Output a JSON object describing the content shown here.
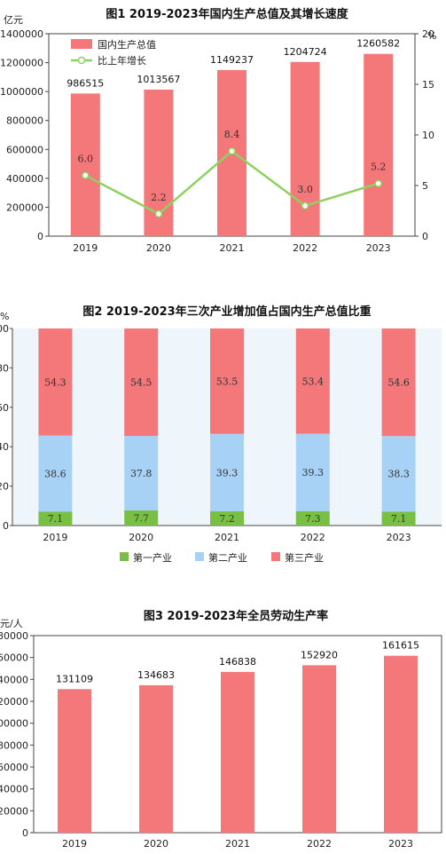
{
  "colors": {
    "bar": "#f4777a",
    "line": "#8fd160",
    "primary": "#78c044",
    "secondary": "#a8d2f5",
    "tertiary": "#f4777a",
    "plot_bg": "#eef6fc"
  },
  "chart_data": [
    {
      "type": "bar",
      "title": "图1  2019-2023年国内生产总值及其增长速度",
      "ylabel": "亿元",
      "y2label": "%",
      "categories": [
        "2019",
        "2020",
        "2021",
        "2022",
        "2023"
      ],
      "ylim": [
        0,
        1400000
      ],
      "yticks": [
        "0",
        "200000",
        "400000",
        "600000",
        "800000",
        "1000000",
        "1200000",
        "1400000"
      ],
      "y2lim": [
        0,
        20
      ],
      "y2ticks": [
        "0",
        "5",
        "10",
        "15",
        "20"
      ],
      "legend": "top-left",
      "series": [
        {
          "name": "国内生产总值",
          "type": "bar",
          "values": [
            986515,
            1013567,
            1149237,
            1204724,
            1260582
          ],
          "labels": [
            "986515",
            "1013567",
            "1149237",
            "1204724",
            "1260582"
          ]
        },
        {
          "name": "比上年增长",
          "type": "line",
          "axis": "right",
          "values": [
            6.0,
            2.2,
            8.4,
            3.0,
            5.2
          ],
          "labels": [
            "6.0",
            "2.2",
            "8.4",
            "3.0",
            "5.2"
          ]
        }
      ]
    },
    {
      "type": "bar",
      "stacked": true,
      "title": "图2  2019-2023年三次产业增加值占国内生产总值比重",
      "ylabel": "%",
      "categories": [
        "2019",
        "2020",
        "2021",
        "2022",
        "2023"
      ],
      "ylim": [
        0,
        100
      ],
      "yticks": [
        "0",
        "20",
        "40",
        "60",
        "80",
        "100"
      ],
      "legend": "bottom",
      "series": [
        {
          "name": "第一产业",
          "values": [
            7.1,
            7.7,
            7.2,
            7.3,
            7.1
          ],
          "labels": [
            "7.1",
            "7.7",
            "7.2",
            "7.3",
            "7.1"
          ]
        },
        {
          "name": "第二产业",
          "values": [
            38.6,
            37.8,
            39.3,
            39.3,
            38.3
          ],
          "labels": [
            "38.6",
            "37.8",
            "39.3",
            "39.3",
            "38.3"
          ]
        },
        {
          "name": "第三产业",
          "values": [
            54.3,
            54.5,
            53.5,
            53.4,
            54.6
          ],
          "labels": [
            "54.3",
            "54.5",
            "53.5",
            "53.4",
            "54.6"
          ]
        }
      ]
    },
    {
      "type": "bar",
      "title": "图3  2019-2023年全员劳动生产率",
      "ylabel": "元/人",
      "categories": [
        "2019",
        "2020",
        "2021",
        "2022",
        "2023"
      ],
      "ylim": [
        0,
        180000
      ],
      "yticks": [
        "0",
        "20000",
        "40000",
        "60000",
        "80000",
        "100000",
        "120000",
        "140000",
        "160000",
        "180000"
      ],
      "series": [
        {
          "name": "全员劳动生产率",
          "values": [
            131109,
            134683,
            146838,
            152920,
            161615
          ],
          "labels": [
            "131109",
            "134683",
            "146838",
            "152920",
            "161615"
          ]
        }
      ]
    }
  ]
}
